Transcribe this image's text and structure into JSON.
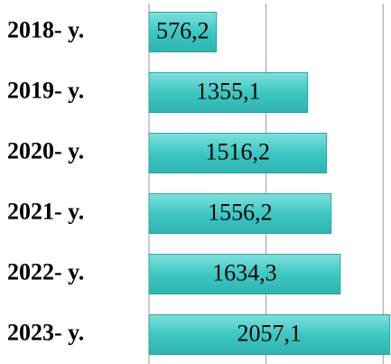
{
  "chart_data": {
    "type": "bar",
    "orientation": "horizontal",
    "categories": [
      "2018- y.",
      "2019- y.",
      "2020- y.",
      "2021- y.",
      "2022- y.",
      "2023- y."
    ],
    "values": [
      576.2,
      1355.1,
      1516.2,
      1556.2,
      1634.3,
      2057.1
    ],
    "value_labels": [
      "576,2",
      "1355,1",
      "1516,2",
      "1556,2",
      "1634,3",
      "2057,1"
    ],
    "color": "#3cc8c4",
    "xlim": [
      0,
      2060
    ],
    "xticks": [
      0,
      1000,
      2000
    ],
    "grid": true
  }
}
